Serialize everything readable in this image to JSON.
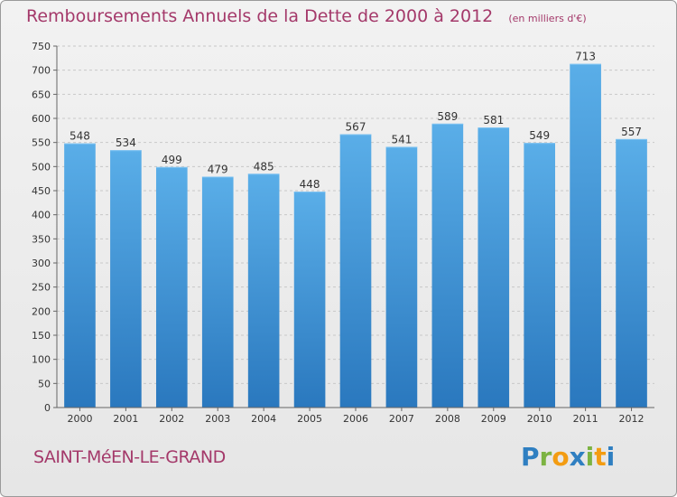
{
  "title": "Remboursements Annuels de la Dette de 2000 à 2012",
  "unit_note": "(en milliers d'€)",
  "commune": "SAINT-MéEN-LE-GRAND",
  "logo": {
    "text": "Proxiti",
    "letters": [
      {
        "ch": "P",
        "color": "#2f7fc1"
      },
      {
        "ch": "r",
        "color": "#7cb342"
      },
      {
        "ch": "o",
        "color": "#f39c12"
      },
      {
        "ch": "x",
        "color": "#2f7fc1"
      },
      {
        "ch": "i",
        "color": "#7cb342"
      },
      {
        "ch": "t",
        "color": "#f39c12"
      },
      {
        "ch": "i",
        "color": "#2f7fc1"
      }
    ]
  },
  "chart_data": {
    "type": "bar",
    "title": "Remboursements Annuels de la Dette de 2000 à 2012",
    "xlabel": "",
    "ylabel": "",
    "categories": [
      "2000",
      "2001",
      "2002",
      "2003",
      "2004",
      "2005",
      "2006",
      "2007",
      "2008",
      "2009",
      "2010",
      "2011",
      "2012"
    ],
    "values": [
      548,
      534,
      499,
      479,
      485,
      448,
      567,
      541,
      589,
      581,
      549,
      713,
      557
    ],
    "value_labels": [
      "548",
      "534",
      "499",
      "479",
      "485",
      "448",
      "567",
      "541",
      "589",
      "581",
      "549",
      "713",
      "557"
    ],
    "ylim": [
      0,
      750
    ],
    "yticks": [
      0,
      50,
      100,
      150,
      200,
      250,
      300,
      350,
      400,
      450,
      500,
      550,
      600,
      650,
      700,
      750
    ],
    "grid": true,
    "bar_color": "#4a97d9"
  }
}
